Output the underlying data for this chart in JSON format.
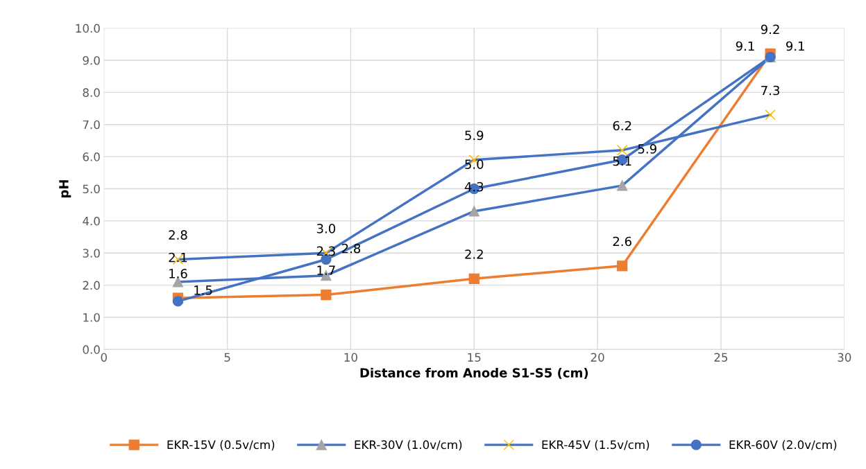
{
  "chart_data": {
    "type": "line",
    "xlabel": "Distance from Anode S1-S5 (cm)",
    "ylabel": "pH",
    "x": [
      3,
      9,
      15,
      21,
      27
    ],
    "xlim": [
      0,
      30
    ],
    "xticks": [
      0,
      5,
      10,
      15,
      20,
      25,
      30
    ],
    "ylim": [
      0,
      10
    ],
    "yticks": [
      {
        "value": 0,
        "label": "0.0"
      },
      {
        "value": 1,
        "label": "1.0"
      },
      {
        "value": 2,
        "label": "2.0"
      },
      {
        "value": 3,
        "label": "3.0"
      },
      {
        "value": 4,
        "label": "4.0"
      },
      {
        "value": 5,
        "label": "5.0"
      },
      {
        "value": 6,
        "label": "6.0"
      },
      {
        "value": 7,
        "label": "7.0"
      },
      {
        "value": 8,
        "label": "8.0"
      },
      {
        "value": 9,
        "label": "9.0"
      },
      {
        "value": 10,
        "label": "10.0"
      }
    ],
    "grid": true,
    "legend": "bottom",
    "line_style": "solid",
    "series": [
      {
        "name": "EKR-15V (0.5v/cm)",
        "color": "#ed7d31",
        "marker": "square",
        "colors": [
          "#ed7d31",
          "#ed7d31",
          "#ed7d31",
          "#ed7d31",
          "#ed7d31"
        ],
        "values": [
          1.6,
          1.7,
          2.2,
          2.6,
          9.2
        ],
        "value_labels": [
          "1.6",
          "1.7",
          "2.2",
          "2.6",
          "9.2"
        ]
      },
      {
        "name": "EKR-30V (1.0v/cm)",
        "color": "#4472c4",
        "marker": "triangle",
        "colors": [
          "#a5a5a5",
          "#a5a5a5",
          "#a5a5a5",
          "#a5a5a5",
          "#a5a5a5"
        ],
        "values": [
          2.1,
          2.3,
          4.3,
          5.1,
          9.1
        ],
        "value_labels": [
          "2.1",
          "2.3",
          "4.3",
          "5.1",
          "9.1"
        ]
      },
      {
        "name": "EKR-45V (1.5v/cm)",
        "color": "#4472c4",
        "marker": "cross",
        "colors": [
          "#ffc000",
          "#ffc000",
          "#ffc000",
          "#ffc000",
          "#ffc000"
        ],
        "values": [
          2.8,
          3.0,
          5.9,
          6.2,
          7.3
        ],
        "value_labels": [
          "2.8",
          "3.0",
          "5.9",
          "6.2",
          "7.3"
        ]
      },
      {
        "name": "EKR-60V (2.0v/cm)",
        "color": "#4472c4",
        "marker": "circle",
        "colors": [
          "#4472c4",
          "#4472c4",
          "#4472c4",
          "#4472c4",
          "#4472c4"
        ],
        "values": [
          1.5,
          2.8,
          5.0,
          5.9,
          9.1
        ],
        "value_labels": [
          "1.5",
          "2.8",
          "5.0",
          "5.9",
          "9.1"
        ]
      }
    ]
  }
}
